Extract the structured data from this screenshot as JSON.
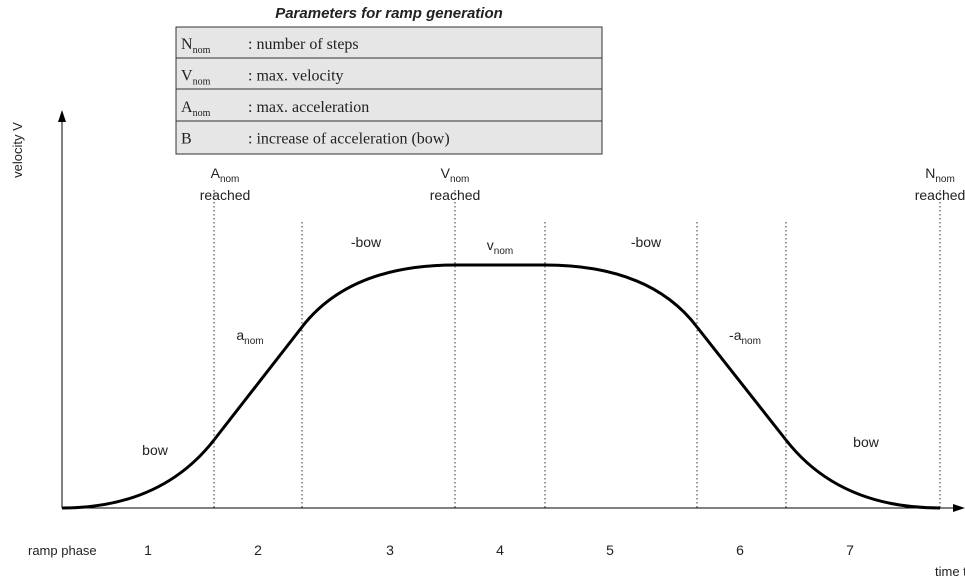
{
  "title": "Parameters for ramp generation",
  "table": {
    "rows": [
      {
        "symbol": "N",
        "sub": "nom",
        "text": ": number of steps"
      },
      {
        "symbol": "V",
        "sub": "nom",
        "text": ": max. velocity"
      },
      {
        "symbol": "A",
        "sub": "nom",
        "text": ": max. acceleration"
      },
      {
        "symbol": "B",
        "text": ": increase of acceleration (bow)"
      }
    ]
  },
  "axes": {
    "y_label": "velocity V",
    "x_label": "time t",
    "phase_label": "ramp phase"
  },
  "phases": [
    "1",
    "2",
    "3",
    "4",
    "5",
    "6",
    "7"
  ],
  "markers": [
    {
      "main": "A",
      "sub": "nom",
      "text": "reached"
    },
    {
      "main": "V",
      "sub": "nom",
      "text": "reached"
    },
    {
      "main": "N",
      "sub": "nom",
      "text": "reached"
    }
  ],
  "segments": [
    {
      "main": "bow"
    },
    {
      "main": "a",
      "sub": "nom"
    },
    {
      "main": "-bow"
    },
    {
      "main": "v",
      "sub": "nom"
    },
    {
      "main": "-bow"
    },
    {
      "main": "-a",
      "sub": "nom"
    },
    {
      "main": "bow"
    }
  ]
}
